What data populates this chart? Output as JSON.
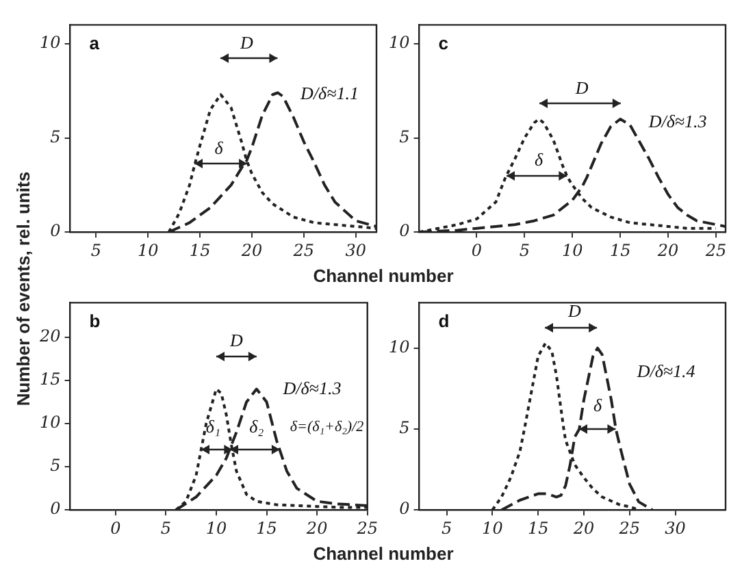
{
  "chart_data": [
    {
      "type": "line",
      "title": "a",
      "xlabel": "Channel number",
      "ylabel": "Number of events, rel. units",
      "xlim": [
        2.5,
        32
      ],
      "xticks": [
        5,
        10,
        15,
        20,
        25,
        30
      ],
      "ylim": [
        0,
        11
      ],
      "yticks": [
        0,
        5,
        10
      ],
      "grid": false,
      "legend": false,
      "series": [
        {
          "color": "#222222",
          "line_style": "dotted",
          "x": [
            12,
            13,
            14,
            14.5,
            15,
            16,
            17,
            18,
            19,
            19.5,
            20,
            21,
            22,
            24,
            26,
            28,
            30,
            32
          ],
          "values": [
            0,
            1,
            2.5,
            3.6,
            4.6,
            6.5,
            7.3,
            6.6,
            4.8,
            3.8,
            3.1,
            2.1,
            1.5,
            0.8,
            0.5,
            0.4,
            0.3,
            0.2
          ]
        },
        {
          "color": "#222222",
          "line_style": "dashed",
          "x": [
            12,
            14,
            16,
            18,
            19,
            19.5,
            20,
            21,
            22,
            22.5,
            23,
            24,
            25,
            26,
            27,
            28,
            30,
            32
          ],
          "values": [
            0,
            0.5,
            1.3,
            2.5,
            3.4,
            3.8,
            4.5,
            6.2,
            7.3,
            7.4,
            7.2,
            6.1,
            4.8,
            3.7,
            2.5,
            1.6,
            0.6,
            0.3
          ]
        }
      ],
      "annotations": [
        "D",
        "δ",
        "D/δ≈1.1"
      ]
    },
    {
      "type": "line",
      "title": "c",
      "xlim": [
        -6,
        26
      ],
      "xticks": [
        0,
        5,
        10,
        15,
        20,
        25
      ],
      "ylim": [
        0,
        11
      ],
      "yticks": [
        0,
        5,
        10
      ],
      "grid": false,
      "legend": false,
      "series": [
        {
          "color": "#222222",
          "line_style": "dotted",
          "x": [
            -6,
            -4,
            -2,
            0,
            2,
            3,
            4,
            5,
            6,
            6.5,
            7,
            8,
            9,
            9.5,
            10,
            11,
            12,
            14,
            16,
            18,
            20,
            22,
            25
          ],
          "values": [
            0,
            0.2,
            0.4,
            0.7,
            1.6,
            2.9,
            3.9,
            5,
            5.8,
            6,
            5.8,
            4.9,
            3.5,
            2.9,
            2.5,
            1.8,
            1.3,
            0.8,
            0.5,
            0.4,
            0.3,
            0.2,
            0.2
          ]
        },
        {
          "color": "#222222",
          "line_style": "dashed",
          "x": [
            -6,
            -2,
            0,
            2,
            4,
            6,
            8,
            10,
            11,
            11.5,
            12,
            13,
            14,
            15,
            16,
            17,
            18,
            19,
            20,
            21,
            22,
            23,
            25,
            26
          ],
          "values": [
            0,
            0.1,
            0.2,
            0.3,
            0.4,
            0.6,
            0.9,
            1.7,
            2.4,
            2.9,
            3.5,
            4.7,
            5.6,
            6,
            5.7,
            4.8,
            3.9,
            2.9,
            2,
            1.3,
            0.9,
            0.6,
            0.4,
            0.3
          ]
        }
      ],
      "annotations": [
        "D",
        "δ",
        "D/δ≈1.3"
      ]
    },
    {
      "type": "line",
      "title": "b",
      "xlabel": "Channel number",
      "xlim": [
        -4.5,
        25
      ],
      "xticks": [
        0,
        5,
        10,
        15,
        20,
        25
      ],
      "ylim": [
        0,
        24
      ],
      "yticks": [
        0,
        5,
        10,
        15,
        20
      ],
      "grid": false,
      "legend": false,
      "series": [
        {
          "color": "#222222",
          "line_style": "dotted",
          "x": [
            6,
            7,
            8,
            9,
            10,
            10.5,
            11,
            11.5,
            12,
            13,
            14,
            16,
            18,
            20,
            22,
            25
          ],
          "values": [
            0,
            1,
            4,
            10,
            14,
            13.5,
            11,
            7.5,
            4.5,
            1.8,
            1,
            0.6,
            0.5,
            0.4,
            0.3,
            0.3
          ]
        },
        {
          "color": "#222222",
          "line_style": "dashed",
          "x": [
            6,
            8,
            10,
            11,
            11.5,
            12,
            13,
            14,
            15,
            16,
            17,
            18,
            20,
            22,
            25
          ],
          "values": [
            0,
            1.5,
            4,
            6,
            7.5,
            9,
            12.5,
            14,
            12.5,
            8,
            4.5,
            2.5,
            1,
            0.7,
            0.5
          ]
        }
      ],
      "annotations": [
        "D",
        "δ₁",
        "δ₂",
        "D/δ≈1.3",
        "δ=(δ₁+δ₂)/2"
      ]
    },
    {
      "type": "line",
      "title": "d",
      "xlim": [
        2,
        35.5
      ],
      "xticks": [
        5,
        10,
        15,
        20,
        25,
        30
      ],
      "ylim": [
        0,
        12.8
      ],
      "yticks": [
        0,
        5,
        10
      ],
      "grid": false,
      "legend": false,
      "series": [
        {
          "color": "#222222",
          "line_style": "dotted",
          "x": [
            10,
            11,
            12,
            13,
            13.5,
            14,
            15,
            15.8,
            16.5,
            17,
            17.8,
            18,
            19,
            20,
            21,
            22,
            24,
            25,
            26
          ],
          "values": [
            0,
            0.8,
            2,
            3.6,
            5,
            6.5,
            9.5,
            10.3,
            9.8,
            8.3,
            5,
            4.3,
            2.8,
            2,
            1.3,
            0.8,
            0.3,
            0.2,
            0
          ]
        },
        {
          "color": "#222222",
          "line_style": "dashed",
          "x": [
            11,
            13,
            15,
            16,
            17,
            17.5,
            18,
            18.5,
            19,
            19.5,
            20,
            21,
            21.5,
            22,
            23,
            23.5,
            24,
            25,
            26,
            27.5
          ],
          "values": [
            0,
            0.6,
            1,
            1,
            0.8,
            0.9,
            1.5,
            2.8,
            4.5,
            5,
            6.8,
            9.5,
            10,
            9.6,
            6.8,
            5,
            3.8,
            1.6,
            0.5,
            0
          ]
        }
      ],
      "annotations": [
        "D",
        "δ",
        "D/δ≈1.4"
      ]
    }
  ]
}
